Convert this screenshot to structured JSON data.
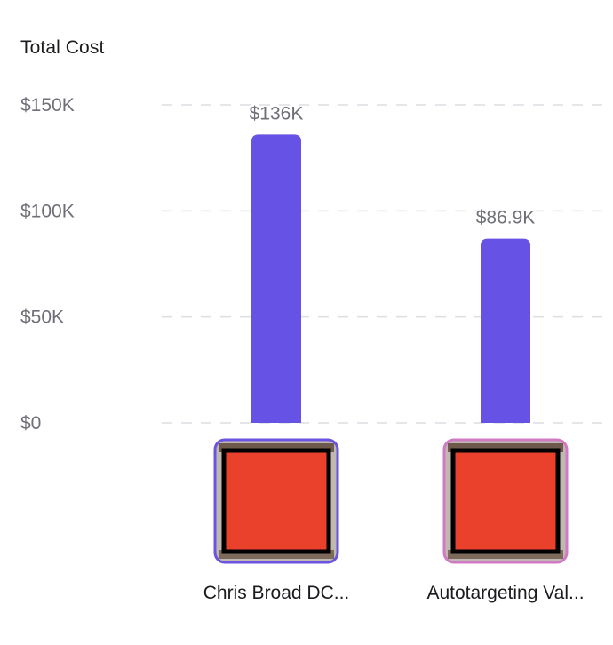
{
  "chart_data": {
    "type": "bar",
    "title": "Total Cost",
    "categories": [
      "Chris Broad DC...",
      "Autotargeting Val..."
    ],
    "values": [
      136000,
      86900
    ],
    "data_labels": [
      "$136K",
      "$86.9K"
    ],
    "ylim": [
      0,
      150000
    ],
    "yticks": [
      {
        "value": 0,
        "label": "$0"
      },
      {
        "value": 50000,
        "label": "$50K"
      },
      {
        "value": 100000,
        "label": "$100K"
      },
      {
        "value": 150000,
        "label": "$150K"
      }
    ],
    "grid": true,
    "bar_color": "#6652e5",
    "thumbnail_frame_colors": [
      "#6b55e0",
      "#d07ac4"
    ],
    "thumbnail_fill_color": "#e9412b",
    "thumbnail_inner_border_color": "#000000"
  }
}
